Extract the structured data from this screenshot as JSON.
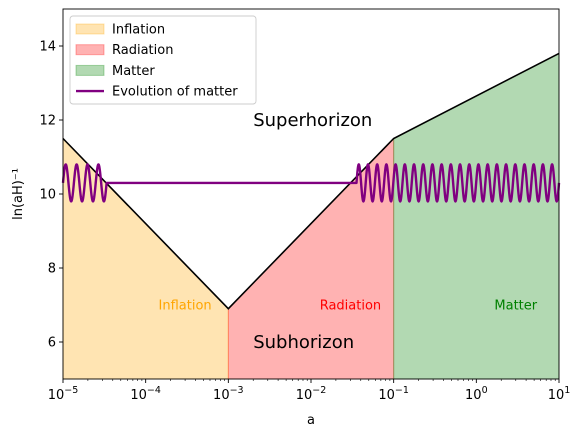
{
  "chart_data": {
    "type": "area",
    "xlabel": "a",
    "ylabel": "ln(aH)⁻¹",
    "xscale": "log",
    "xlim": [
      1e-05,
      10
    ],
    "ylim": [
      5,
      15
    ],
    "x_ticks": [
      {
        "value": 1e-05,
        "base": "10",
        "exp": "−5"
      },
      {
        "value": 0.0001,
        "base": "10",
        "exp": "−4"
      },
      {
        "value": 0.001,
        "base": "10",
        "exp": "−3"
      },
      {
        "value": 0.01,
        "base": "10",
        "exp": "−2"
      },
      {
        "value": 0.1,
        "base": "10",
        "exp": "−1"
      },
      {
        "value": 1,
        "base": "10",
        "exp": "0"
      },
      {
        "value": 10,
        "base": "10",
        "exp": "1"
      }
    ],
    "y_ticks": [
      {
        "value": 6,
        "label": "6"
      },
      {
        "value": 8,
        "label": "8"
      },
      {
        "value": 10,
        "label": "10"
      },
      {
        "value": 12,
        "label": "12"
      },
      {
        "value": 14,
        "label": "14"
      }
    ],
    "grid": false,
    "legend_position": "top-left",
    "boundary": [
      {
        "a": 1e-05,
        "y": 11.5
      },
      {
        "a": 0.001,
        "y": 6.9
      },
      {
        "a": 0.1,
        "y": 11.5
      },
      {
        "a": 10,
        "y": 13.8
      }
    ],
    "regions": [
      {
        "name": "Inflation",
        "a_range": [
          1e-05,
          0.001
        ],
        "color": "#ffa500",
        "text_color": "#ffa500",
        "label_at": [
          0.0003,
          7
        ]
      },
      {
        "name": "Radiation",
        "a_range": [
          0.001,
          0.1
        ],
        "color": "#ff0000",
        "text_color": "#ff0000",
        "label_at": [
          0.03,
          7
        ]
      },
      {
        "name": "Matter",
        "a_range": [
          0.1,
          10
        ],
        "color": "#008000",
        "text_color": "#008000",
        "label_at": [
          3,
          7
        ]
      }
    ],
    "series": [
      {
        "name": "Evolution of matter",
        "color": "#800080",
        "mean": 10.3,
        "amplitude": 0.5,
        "segments": [
          {
            "kind": "oscillating",
            "a_range": [
              1e-05,
              3.37e-05
            ],
            "cycles": 4
          },
          {
            "kind": "frozen",
            "a_range": [
              3.37e-05,
              0.0355
            ]
          },
          {
            "kind": "oscillating",
            "a_range": [
              0.0355,
              10
            ],
            "cycles": 22
          }
        ]
      }
    ],
    "annotations": [
      {
        "text": "Superhorizon",
        "a": 0.002,
        "y": 12
      },
      {
        "text": "Subhorizon",
        "a": 0.002,
        "y": 6
      }
    ]
  }
}
